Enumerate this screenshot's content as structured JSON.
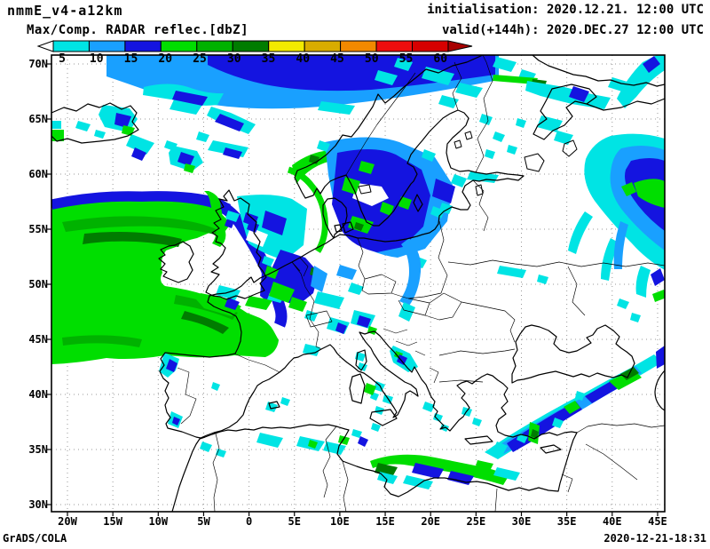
{
  "header": {
    "model_title": "nmmE_v4-a12km",
    "field_title": "Max/Comp. RADAR reflec.[dbZ]",
    "init_line": "initialisation: 2020.12.21. 12:00 UTC",
    "valid_line": "valid(+144h): 2020.DEC.27 12:00 UTC"
  },
  "colorbar": {
    "tick_labels": [
      "5",
      "10",
      "15",
      "20",
      "25",
      "30",
      "35",
      "40",
      "45",
      "50",
      "55",
      "60"
    ],
    "segment_colors": [
      "#00E4E4",
      "#19A0FF",
      "#1414E0",
      "#00DE00",
      "#00B200",
      "#007C00",
      "#F2EA00",
      "#D8AC00",
      "#F28900",
      "#EE0E0E",
      "#D60000"
    ],
    "under_range_color": "#FFFFFF",
    "over_range_color": "#A80000"
  },
  "axes": {
    "lat_labels": [
      "70N",
      "65N",
      "60N",
      "55N",
      "50N",
      "45N",
      "40N",
      "35N",
      "30N"
    ],
    "lon_labels": [
      "20W",
      "15W",
      "10W",
      "5W",
      "0",
      "5E",
      "10E",
      "15E",
      "20E",
      "25E",
      "30E",
      "35E",
      "40E",
      "45E"
    ]
  },
  "footer": {
    "credit": "GrADS/COLA",
    "timestamp": "2020-12-21-18:31"
  },
  "chart_data": {
    "type": "heatmap",
    "projection": "latlon",
    "title": "Max/Comp. RADAR reflec.[dbZ]",
    "model": "nmmE_v4-a12km",
    "initialisation": "2020.12.21. 12:00 UTC",
    "valid": "2020.DEC.27 12:00 UTC (+144h)",
    "units": "dbZ",
    "contour_levels": [
      5,
      10,
      15,
      20,
      25,
      30,
      35,
      40,
      45,
      50,
      55,
      60
    ],
    "palette": [
      "#00E4E4",
      "#19A0FF",
      "#1414E0",
      "#00DE00",
      "#00B200",
      "#007C00",
      "#F2EA00",
      "#D8AC00",
      "#F28900",
      "#EE0E0E",
      "#D60000"
    ],
    "lon_labels_deg": [
      -20,
      -15,
      -10,
      -5,
      0,
      5,
      10,
      15,
      20,
      25,
      30,
      35,
      40,
      45
    ],
    "lat_labels_deg": [
      70,
      65,
      60,
      55,
      50,
      45,
      40,
      35,
      30
    ],
    "grid_interval_deg": 5,
    "grid_style": "dotted",
    "legend_position": "top",
    "echo_regions": [
      {
        "area": "NE Atlantic / Bay of Biscay west of Ireland and France",
        "intensity_dbz": "20-35"
      },
      {
        "area": "Arctic band north of Norway (70N+)",
        "intensity_dbz": "10-20"
      },
      {
        "area": "Iceland east coast",
        "intensity_dbz": "5-25"
      },
      {
        "area": "North Sea / Denmark / southern Scandinavia / Baltic",
        "intensity_dbz": "10-30"
      },
      {
        "area": "Netherlands / Belgium / NW Germany",
        "intensity_dbz": "15-25"
      },
      {
        "area": "Western Russia near 40E, 55-62N",
        "intensity_dbz": "10-25"
      },
      {
        "area": "NE Turkey into Caucasus diagonal band",
        "intensity_dbz": "10-35"
      },
      {
        "area": "Libyan coast / central Mediterranean",
        "intensity_dbz": "10-35"
      },
      {
        "area": "Kola Peninsula / White Sea",
        "intensity_dbz": "5-15"
      }
    ]
  }
}
